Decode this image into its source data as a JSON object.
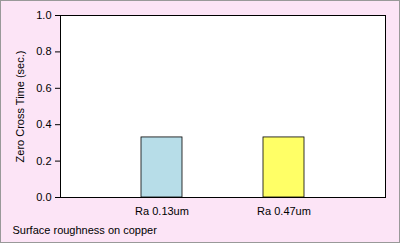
{
  "chart_data": {
    "type": "bar",
    "x_label": "Surface roughness on copper",
    "y_label": "Zero Cross Time (sec.)",
    "categories": [
      "Ra 0.13um",
      "Ra 0.47um"
    ],
    "values": [
      0.33,
      0.33
    ],
    "colors": [
      "#b7dde8",
      "#ffff66"
    ],
    "ylim": [
      0,
      1
    ],
    "yticks": [
      {
        "value": 0,
        "label": "0.0"
      },
      {
        "value": 0.2,
        "label": "0.2"
      },
      {
        "value": 0.4,
        "label": "0.4"
      },
      {
        "value": 0.6,
        "label": "0.6"
      },
      {
        "value": 0.8,
        "label": "0.8"
      },
      {
        "value": 1,
        "label": "1.0"
      }
    ],
    "grid": false
  }
}
